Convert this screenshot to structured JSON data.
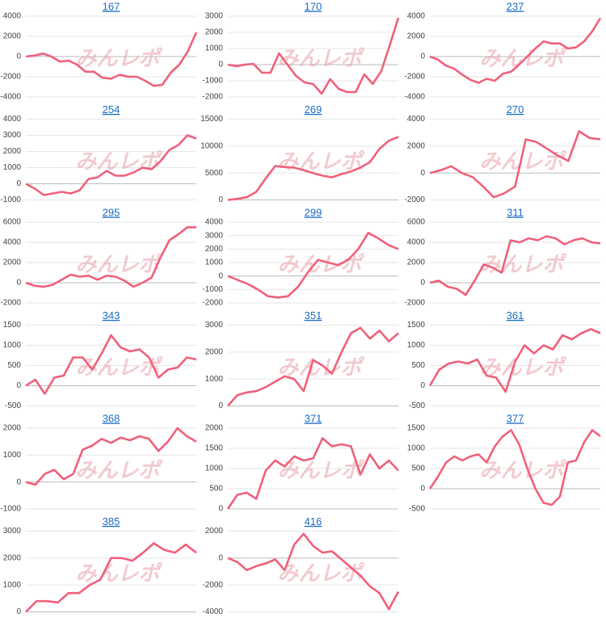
{
  "watermark": "みんレポ",
  "chart_data": [
    {
      "type": "line",
      "title": "167",
      "ylim": [
        -4000,
        4000
      ],
      "yticks": [
        4000,
        2000,
        0,
        -2000,
        -4000
      ],
      "color": "#f0607a",
      "values": [
        0,
        100,
        300,
        0,
        -500,
        -400,
        -800,
        -1500,
        -1500,
        -2100,
        -2200,
        -1800,
        -2000,
        -2000,
        -2400,
        -2900,
        -2800,
        -1600,
        -800,
        500,
        2400
      ]
    },
    {
      "type": "line",
      "title": "170",
      "ylim": [
        -2000,
        3000
      ],
      "yticks": [
        3000,
        2000,
        1000,
        0,
        -1000,
        -2000
      ],
      "color": "#f0607a",
      "values": [
        0,
        -100,
        0,
        50,
        -500,
        -500,
        700,
        0,
        -700,
        -1100,
        -1200,
        -1800,
        -900,
        -1500,
        -1700,
        -1700,
        -600,
        -1200,
        -400,
        1200,
        2900
      ]
    },
    {
      "type": "line",
      "title": "237",
      "ylim": [
        -4000,
        4000
      ],
      "yticks": [
        4000,
        2000,
        0,
        -2000,
        -4000
      ],
      "color": "#f0607a",
      "values": [
        0,
        -300,
        -900,
        -1200,
        -1800,
        -2300,
        -2600,
        -2200,
        -2400,
        -1700,
        -1500,
        -800,
        0,
        800,
        1500,
        1300,
        1300,
        800,
        900,
        1500,
        2500,
        3800
      ]
    },
    {
      "type": "line",
      "title": "254",
      "ylim": [
        -1000,
        4000
      ],
      "yticks": [
        4000,
        3000,
        2000,
        1000,
        0,
        -1000
      ],
      "color": "#f0607a",
      "values": [
        0,
        -300,
        -700,
        -600,
        -500,
        -600,
        -400,
        300,
        400,
        800,
        500,
        500,
        700,
        1000,
        900,
        1400,
        2100,
        2400,
        3000,
        2800
      ]
    },
    {
      "type": "line",
      "title": "269",
      "ylim": [
        0,
        15000
      ],
      "yticks": [
        15000,
        10000,
        5000,
        0
      ],
      "color": "#f0607a",
      "values": [
        0,
        200,
        500,
        1500,
        4000,
        6300,
        6100,
        6000,
        5500,
        5000,
        4500,
        4200,
        4800,
        5300,
        6000,
        7000,
        9500,
        11000,
        11700
      ]
    },
    {
      "type": "line",
      "title": "270",
      "ylim": [
        -2000,
        4000
      ],
      "yticks": [
        4000,
        2000,
        0,
        -2000
      ],
      "color": "#f0607a",
      "values": [
        0,
        200,
        500,
        0,
        -300,
        -1000,
        -1800,
        -1500,
        -1000,
        2500,
        2300,
        1800,
        1300,
        900,
        3100,
        2600,
        2500
      ]
    },
    {
      "type": "line",
      "title": "295",
      "ylim": [
        -2000,
        6000
      ],
      "yticks": [
        6000,
        4000,
        2000,
        0,
        -2000
      ],
      "color": "#f0607a",
      "values": [
        0,
        -300,
        -400,
        -200,
        300,
        800,
        600,
        700,
        300,
        700,
        600,
        200,
        -400,
        0,
        500,
        2500,
        4200,
        4800,
        5500,
        5500
      ]
    },
    {
      "type": "line",
      "title": "299",
      "ylim": [
        -2000,
        4000
      ],
      "yticks": [
        4000,
        3000,
        2000,
        1000,
        0,
        -1000,
        -2000
      ],
      "color": "#f0607a",
      "values": [
        0,
        -300,
        -600,
        -1000,
        -1500,
        -1600,
        -1500,
        -800,
        300,
        1200,
        1000,
        800,
        1200,
        2000,
        3200,
        2800,
        2300,
        2000
      ]
    },
    {
      "type": "line",
      "title": "311",
      "ylim": [
        -2000,
        6000
      ],
      "yticks": [
        6000,
        4000,
        2000,
        0,
        -2000
      ],
      "color": "#f0607a",
      "values": [
        0,
        200,
        -400,
        -600,
        -1200,
        200,
        1800,
        1500,
        1000,
        4200,
        4000,
        4400,
        4200,
        4600,
        4400,
        3800,
        4200,
        4400,
        4000,
        3900
      ]
    },
    {
      "type": "line",
      "title": "343",
      "ylim": [
        -500,
        1500
      ],
      "yticks": [
        1500,
        1000,
        500,
        0,
        -500
      ],
      "color": "#f0607a",
      "values": [
        0,
        150,
        -200,
        200,
        250,
        700,
        700,
        400,
        800,
        1250,
        950,
        850,
        900,
        700,
        200,
        400,
        450,
        700,
        650
      ]
    },
    {
      "type": "line",
      "title": "351",
      "ylim": [
        0,
        3000
      ],
      "yticks": [
        3000,
        2000,
        1000,
        0
      ],
      "color": "#f0607a",
      "values": [
        0,
        400,
        500,
        550,
        700,
        900,
        1100,
        1000,
        550,
        1700,
        1500,
        1200,
        2000,
        2700,
        2900,
        2500,
        2800,
        2400,
        2700
      ]
    },
    {
      "type": "line",
      "title": "361",
      "ylim": [
        -500,
        1500
      ],
      "yticks": [
        1500,
        1000,
        500,
        0,
        -500
      ],
      "color": "#f0607a",
      "values": [
        0,
        400,
        550,
        600,
        550,
        650,
        250,
        200,
        -150,
        600,
        1000,
        800,
        1000,
        900,
        1250,
        1150,
        1300,
        1400,
        1300
      ]
    },
    {
      "type": "line",
      "title": "368",
      "ylim": [
        -1000,
        2000
      ],
      "yticks": [
        2000,
        1000,
        0,
        -1000
      ],
      "color": "#f0607a",
      "values": [
        0,
        -100,
        300,
        450,
        100,
        300,
        1200,
        1350,
        1600,
        1450,
        1650,
        1550,
        1700,
        1600,
        1150,
        1500,
        2000,
        1700,
        1500
      ]
    },
    {
      "type": "line",
      "title": "371",
      "ylim": [
        0,
        2000
      ],
      "yticks": [
        2000,
        1500,
        1000,
        500,
        0
      ],
      "color": "#f0607a",
      "values": [
        0,
        350,
        400,
        250,
        950,
        1200,
        1050,
        1300,
        1200,
        1250,
        1750,
        1550,
        1600,
        1550,
        850,
        1350,
        1000,
        1200,
        950
      ]
    },
    {
      "type": "line",
      "title": "377",
      "ylim": [
        -500,
        1500
      ],
      "yticks": [
        1500,
        1000,
        500,
        0,
        -500
      ],
      "color": "#f0607a",
      "values": [
        0,
        300,
        650,
        800,
        700,
        800,
        850,
        650,
        1050,
        1300,
        1450,
        1100,
        500,
        0,
        -350,
        -400,
        -200,
        650,
        700,
        1150,
        1450,
        1300
      ]
    },
    {
      "type": "line",
      "title": "385",
      "ylim": [
        0,
        3000
      ],
      "yticks": [
        3000,
        2000,
        1000,
        0
      ],
      "color": "#f0607a",
      "values": [
        0,
        400,
        400,
        350,
        700,
        700,
        1000,
        1200,
        2000,
        2000,
        1900,
        2200,
        2550,
        2300,
        2200,
        2500,
        2200
      ]
    },
    {
      "type": "line",
      "title": "416",
      "ylim": [
        -4000,
        2000
      ],
      "yticks": [
        2000,
        0,
        -2000,
        -4000
      ],
      "color": "#f0607a",
      "values": [
        0,
        -300,
        -900,
        -600,
        -400,
        -100,
        -900,
        1000,
        1800,
        900,
        400,
        500,
        -100,
        -700,
        -1300,
        -2100,
        -2600,
        -3800,
        -2500
      ]
    }
  ]
}
